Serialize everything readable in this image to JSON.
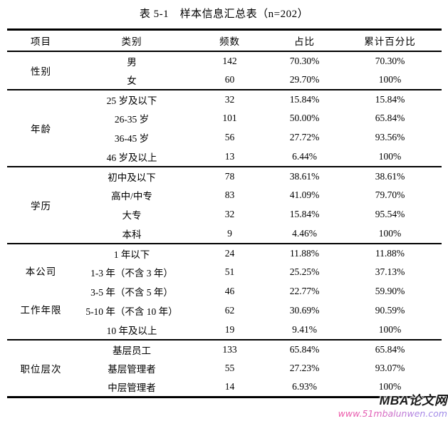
{
  "page": {
    "title": "表 5-1　样本信息汇总表（n=202）"
  },
  "table": {
    "headers": [
      "项目",
      "类别",
      "频数",
      "占比",
      "累计百分比"
    ],
    "sections": [
      {
        "item": "性别",
        "item_lines": [
          "性别"
        ],
        "rows": [
          {
            "category": "男",
            "freq": "142",
            "pct": "70.30%",
            "cum": "70.30%"
          },
          {
            "category": "女",
            "freq": "60",
            "pct": "29.70%",
            "cum": "100%"
          }
        ]
      },
      {
        "item": "年龄",
        "item_lines": [
          "年龄"
        ],
        "rows": [
          {
            "category": "25 岁及以下",
            "freq": "32",
            "pct": "15.84%",
            "cum": "15.84%"
          },
          {
            "category": "26-35 岁",
            "freq": "101",
            "pct": "50.00%",
            "cum": "65.84%"
          },
          {
            "category": "36-45 岁",
            "freq": "56",
            "pct": "27.72%",
            "cum": "93.56%"
          },
          {
            "category": "46 岁及以上",
            "freq": "13",
            "pct": "6.44%",
            "cum": "100%"
          }
        ]
      },
      {
        "item": "学历",
        "item_lines": [
          "学历"
        ],
        "rows": [
          {
            "category": "初中及以下",
            "freq": "78",
            "pct": "38.61%",
            "cum": "38.61%"
          },
          {
            "category": "高中/中专",
            "freq": "83",
            "pct": "41.09%",
            "cum": "79.70%"
          },
          {
            "category": "大专",
            "freq": "32",
            "pct": "15.84%",
            "cum": "95.54%"
          },
          {
            "category": "本科",
            "freq": "9",
            "pct": "4.46%",
            "cum": "100%"
          }
        ]
      },
      {
        "item": "本公司工作年限",
        "item_lines": [
          "本公司",
          "工作年限"
        ],
        "rows": [
          {
            "category": "1 年以下",
            "freq": "24",
            "pct": "11.88%",
            "cum": "11.88%"
          },
          {
            "category": "1-3 年（不含 3 年）",
            "freq": "51",
            "pct": "25.25%",
            "cum": "37.13%"
          },
          {
            "category": "3-5 年（不含 5 年）",
            "freq": "46",
            "pct": "22.77%",
            "cum": "59.90%"
          },
          {
            "category": "5-10 年（不含 10 年）",
            "freq": "62",
            "pct": "30.69%",
            "cum": "90.59%"
          },
          {
            "category": "10 年及以上",
            "freq": "19",
            "pct": "9.41%",
            "cum": "100%"
          }
        ]
      },
      {
        "item": "职位层次",
        "item_lines": [
          "职位层次"
        ],
        "rows": [
          {
            "category": "基层员工",
            "freq": "133",
            "pct": "65.84%",
            "cum": "65.84%"
          },
          {
            "category": "基层管理者",
            "freq": "55",
            "pct": "27.23%",
            "cum": "93.07%"
          },
          {
            "category": "中层管理者",
            "freq": "14",
            "pct": "6.93%",
            "cum": "100%"
          }
        ]
      }
    ]
  },
  "watermark": {
    "site_name": "MBA论文网",
    "site_url": "www.51mbalunwen.com",
    "name_color": "#1a1a1a",
    "url_color_start": "#ee55a5",
    "url_color_end": "#9b8ae8"
  }
}
